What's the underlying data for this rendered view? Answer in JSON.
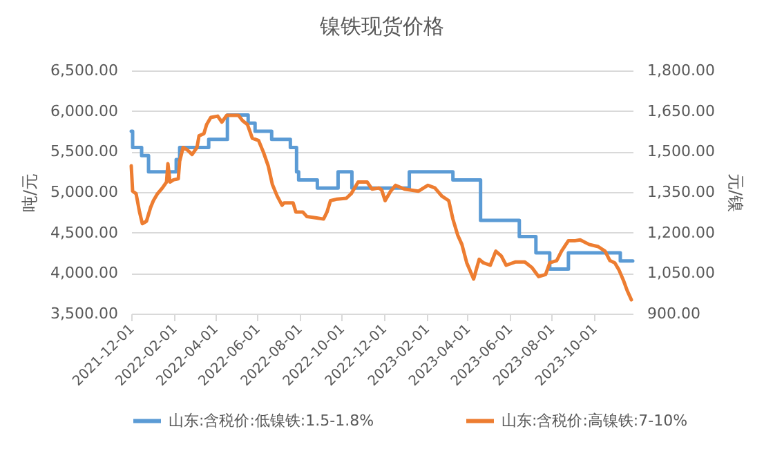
{
  "chart_data": {
    "type": "line",
    "title": "镍铁现货价格",
    "ylabel": "吨/元",
    "y2label": "元/镍",
    "xlim": [
      "2021-12-01",
      "2023-11-26"
    ],
    "xticks": [
      "2021-12-01",
      "2022-02-01",
      "2022-04-01",
      "2022-06-01",
      "2022-08-01",
      "2022-10-01",
      "2022-12-01",
      "2023-02-01",
      "2023-04-01",
      "2023-06-01",
      "2023-08-01",
      "2023-10-01"
    ],
    "ylim": [
      3500,
      6500
    ],
    "yticks": [
      {
        "value": 3500,
        "label": "3,500.00"
      },
      {
        "value": 4000,
        "label": "4,000.00"
      },
      {
        "value": 4500,
        "label": "4,500.00"
      },
      {
        "value": 5000,
        "label": "5,000.00"
      },
      {
        "value": 5500,
        "label": "5,500.00"
      },
      {
        "value": 6000,
        "label": "6,000.00"
      },
      {
        "value": 6500,
        "label": "6,500.00"
      }
    ],
    "y2lim": [
      900,
      1800
    ],
    "y2ticks": [
      {
        "value": 900,
        "label": "900.00"
      },
      {
        "value": 1050,
        "label": "1,050.00"
      },
      {
        "value": 1200,
        "label": "1,200.00"
      },
      {
        "value": 1350,
        "label": "1,350.00"
      },
      {
        "value": 1500,
        "label": "1,500.00"
      },
      {
        "value": 1650,
        "label": "1,650.00"
      },
      {
        "value": 1800,
        "label": "1,800.00"
      }
    ],
    "grid": "y",
    "legend": "bottom",
    "series": [
      {
        "name": "山东:含税价:低镍铁:1.5-1.8%",
        "color": "#5b9bd5",
        "type": "step",
        "x": [
          "2021-12-01",
          "2021-12-03",
          "2021-12-16",
          "2021-12-26",
          "2022-02-04",
          "2022-02-09",
          "2022-03-23",
          "2022-04-19",
          "2022-05-19",
          "2022-05-29",
          "2022-06-22",
          "2022-07-19",
          "2022-07-28",
          "2022-07-31",
          "2022-08-27",
          "2022-09-26",
          "2022-10-16",
          "2023-01-07",
          "2023-03-11",
          "2023-04-20",
          "2023-06-15",
          "2023-07-09",
          "2023-07-29",
          "2023-08-25",
          "2023-11-08",
          "2023-11-26"
        ],
        "values": [
          5750,
          5550,
          5450,
          5250,
          5400,
          5550,
          5650,
          5950,
          5850,
          5750,
          5650,
          5550,
          5250,
          5150,
          5050,
          5250,
          5050,
          5250,
          5150,
          4650,
          4450,
          4250,
          4050,
          4250,
          4150,
          4150
        ]
      },
      {
        "name": "山东:含税价:高镍铁:7-10%",
        "color": "#ed7d31",
        "axis": "y2",
        "x": [
          "2021-12-01",
          "2021-12-03",
          "2021-12-08",
          "2021-12-13",
          "2021-12-17",
          "2021-12-23",
          "2021-12-29",
          "2022-01-02",
          "2022-01-08",
          "2022-01-15",
          "2022-01-21",
          "2022-01-23",
          "2022-01-26",
          "2022-01-31",
          "2022-02-07",
          "2022-02-09",
          "2022-02-14",
          "2022-02-20",
          "2022-02-27",
          "2022-03-06",
          "2022-03-09",
          "2022-03-16",
          "2022-03-20",
          "2022-03-26",
          "2022-04-05",
          "2022-04-11",
          "2022-04-18",
          "2022-05-05",
          "2022-05-11",
          "2022-05-18",
          "2022-05-25",
          "2022-06-03",
          "2022-06-10",
          "2022-06-17",
          "2022-06-23",
          "2022-06-30",
          "2022-07-07",
          "2022-07-10",
          "2022-07-23",
          "2022-07-27",
          "2022-08-06",
          "2022-08-12",
          "2022-08-26",
          "2022-09-05",
          "2022-09-10",
          "2022-09-15",
          "2022-09-25",
          "2022-10-08",
          "2022-10-15",
          "2022-10-25",
          "2022-11-07",
          "2022-11-14",
          "2022-11-24",
          "2022-11-28",
          "2022-12-03",
          "2022-12-11",
          "2022-12-18",
          "2022-12-31",
          "2023-01-20",
          "2023-02-03",
          "2023-02-13",
          "2023-02-23",
          "2023-03-05",
          "2023-03-11",
          "2023-03-18",
          "2023-03-24",
          "2023-03-31",
          "2023-04-10",
          "2023-04-18",
          "2023-04-24",
          "2023-05-04",
          "2023-05-12",
          "2023-05-20",
          "2023-05-27",
          "2023-06-09",
          "2023-06-23",
          "2023-07-03",
          "2023-07-13",
          "2023-07-23",
          "2023-07-29",
          "2023-08-08",
          "2023-08-15",
          "2023-08-25",
          "2023-09-04",
          "2023-09-11",
          "2023-09-24",
          "2023-10-07",
          "2023-10-17",
          "2023-10-24",
          "2023-10-31",
          "2023-11-06",
          "2023-11-13",
          "2023-11-18",
          "2023-11-24"
        ],
        "values": [
          1447,
          1353,
          1344,
          1276,
          1233,
          1242,
          1293,
          1318,
          1344,
          1365,
          1387,
          1455,
          1387,
          1395,
          1399,
          1464,
          1515,
          1506,
          1489,
          1515,
          1558,
          1566,
          1600,
          1626,
          1631,
          1609,
          1634,
          1634,
          1614,
          1600,
          1549,
          1541,
          1498,
          1447,
          1378,
          1335,
          1301,
          1310,
          1310,
          1276,
          1276,
          1259,
          1254,
          1250,
          1276,
          1318,
          1324,
          1327,
          1344,
          1387,
          1387,
          1361,
          1365,
          1358,
          1318,
          1353,
          1375,
          1361,
          1353,
          1375,
          1365,
          1335,
          1318,
          1250,
          1190,
          1156,
          1088,
          1028,
          1101,
          1088,
          1079,
          1131,
          1113,
          1079,
          1091,
          1091,
          1071,
          1037,
          1045,
          1088,
          1096,
          1131,
          1170,
          1170,
          1173,
          1156,
          1148,
          1131,
          1096,
          1088,
          1062,
          1020,
          985,
          951
        ]
      }
    ]
  }
}
